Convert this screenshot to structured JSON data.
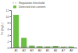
{
  "chart_data": {
    "type": "bar",
    "y_label": "Fe (mg/L)",
    "categories": [
      "A1",
      "A2",
      "A3",
      "A4",
      "A5",
      "A6",
      "A7",
      "A8"
    ],
    "series": [
      {
        "name": "Regulation threshold",
        "type": "line",
        "line_style": "dashed",
        "color": "#8c8c8c",
        "values": [
          0.3,
          0.3,
          0.3,
          0.3,
          0.3,
          0.3,
          0.3,
          0.3
        ]
      },
      {
        "name": "Detected iron content",
        "type": "bar",
        "color": "#6abf40",
        "values": [
          10.5,
          3.1,
          0.6,
          0.4,
          0.3,
          0.5,
          0.2,
          0.3
        ]
      }
    ],
    "ylim": [
      0,
      12
    ],
    "yticks": [
      0,
      2,
      4,
      6,
      8,
      10,
      12
    ],
    "legend": "top"
  }
}
